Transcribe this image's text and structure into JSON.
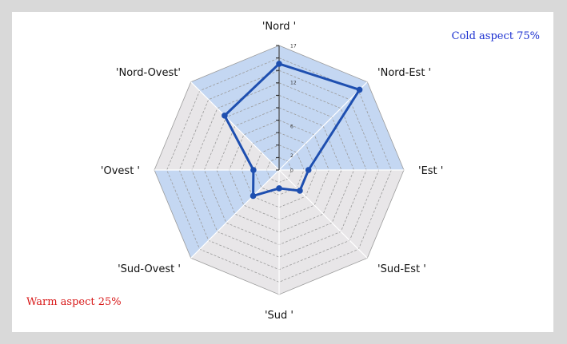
{
  "annotations": {
    "cold": "Cold aspect 75%",
    "warm": "Warm aspect 25%"
  },
  "colors": {
    "series_line": "#1e4fb0",
    "highlight_fill": "#c4d7f2",
    "base_fill": "#e8e6e8",
    "grid_line": "#9b9b9b",
    "cold_text": "#1a2fd0",
    "warm_text": "#d81818"
  },
  "chart_data": {
    "type": "radar",
    "categories": [
      "'Nord '",
      "'Nord-Est '",
      "'Est '",
      "'Sud-Est '",
      "'Sud '",
      "'Sud-Ovest '",
      "'Ovest '",
      "'Nord-Ovest'"
    ],
    "series": [
      {
        "values": [
          14.5,
          15.5,
          4,
          4,
          2.5,
          5,
          3.5,
          10.5
        ]
      }
    ],
    "radial_ticks": [
      0,
      2,
      6,
      12,
      17
    ],
    "rlim": [
      0,
      17
    ],
    "grid": true,
    "highlighted_sectors": [
      "'Nord-Ovest'-'Nord '",
      "'Nord '-'Nord-Est '",
      "'Nord-Est '-'Est '",
      "'Sud '-'Sud-Est '",
      "'Sud-Ovest '-'Ovest '"
    ]
  }
}
